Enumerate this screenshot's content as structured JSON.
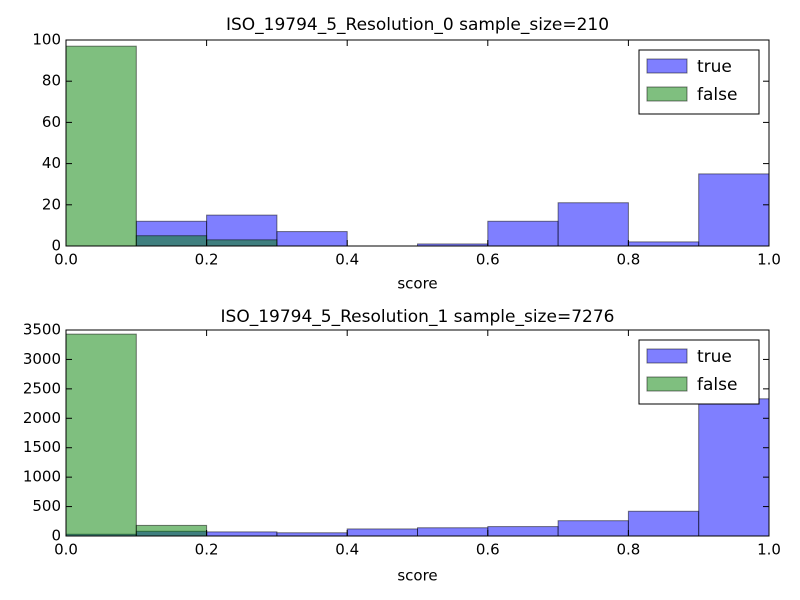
{
  "chart_data": [
    {
      "type": "histogram",
      "title": "ISO_19794_5_Resolution_0 sample_size=210",
      "xlabel": "score",
      "bins": [
        0,
        0.1,
        0.2,
        0.3,
        0.4,
        0.5,
        0.6,
        0.7,
        0.8,
        0.9,
        1.0
      ],
      "series": [
        {
          "name": "true",
          "color": "#0000ff",
          "values": [
            0,
            12,
            15,
            7,
            0,
            1,
            12,
            21,
            2,
            35
          ]
        },
        {
          "name": "false",
          "color": "#008000",
          "values": [
            97,
            5,
            3,
            0,
            0,
            0,
            0,
            0,
            0,
            0
          ]
        }
      ],
      "xlim": [
        0,
        1
      ],
      "xticks": [
        {
          "value": 0,
          "label": "0.0"
        },
        {
          "value": 0.2,
          "label": "0.2"
        },
        {
          "value": 0.4,
          "label": "0.4"
        },
        {
          "value": 0.6,
          "label": "0.6"
        },
        {
          "value": 0.8,
          "label": "0.8"
        },
        {
          "value": 1,
          "label": "1.0"
        }
      ],
      "ylim": [
        0,
        100
      ],
      "yticks": [
        0,
        20,
        40,
        60,
        80,
        100
      ],
      "legend": "upper right"
    },
    {
      "type": "histogram",
      "title": "ISO_19794_5_Resolution_1 sample_size=7276",
      "xlabel": "score",
      "bins": [
        0,
        0.1,
        0.2,
        0.3,
        0.4,
        0.5,
        0.6,
        0.7,
        0.8,
        0.9,
        1.0
      ],
      "series": [
        {
          "name": "true",
          "color": "#0000ff",
          "values": [
            30,
            80,
            70,
            55,
            120,
            140,
            160,
            260,
            420,
            2331
          ]
        },
        {
          "name": "false",
          "color": "#008000",
          "values": [
            3430,
            180,
            0,
            0,
            0,
            0,
            0,
            0,
            0,
            0
          ]
        }
      ],
      "xlim": [
        0,
        1
      ],
      "xticks": [
        {
          "value": 0,
          "label": "0.0"
        },
        {
          "value": 0.2,
          "label": "0.2"
        },
        {
          "value": 0.4,
          "label": "0.4"
        },
        {
          "value": 0.6,
          "label": "0.6"
        },
        {
          "value": 0.8,
          "label": "0.8"
        },
        {
          "value": 1,
          "label": "1.0"
        }
      ],
      "ylim": [
        0,
        3500
      ],
      "yticks": [
        0,
        500,
        1000,
        1500,
        2000,
        2500,
        3000,
        3500
      ],
      "legend": "upper right"
    }
  ]
}
